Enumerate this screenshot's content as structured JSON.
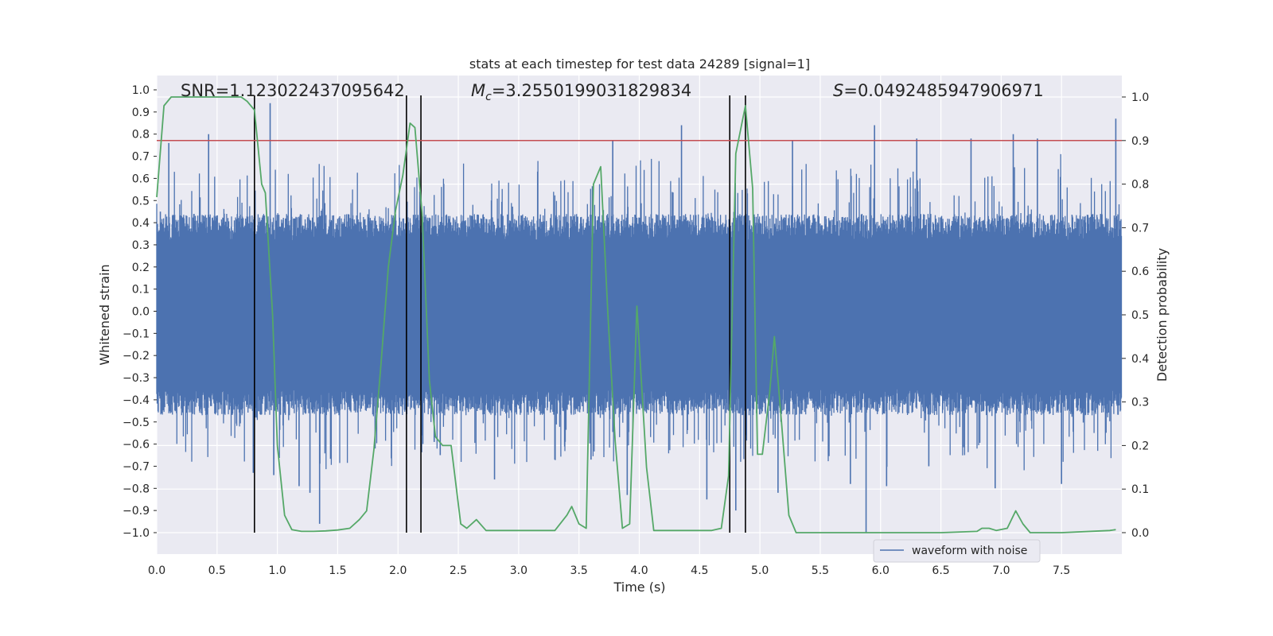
{
  "chart_data": {
    "type": "line",
    "title": "stats at each timestep for test data 24289 [signal=1]",
    "xlabel": "Time (s)",
    "ylabel_left": "Whitened strain",
    "ylabel_right": "Detection probability",
    "xlim": [
      0.0,
      8.0
    ],
    "ylim_left": [
      -1.1,
      1.05
    ],
    "ylim_right": [
      -0.05,
      1.03
    ],
    "x_ticks": [
      "0.0",
      "0.5",
      "1.0",
      "1.5",
      "2.0",
      "2.5",
      "3.0",
      "3.5",
      "4.0",
      "4.5",
      "5.0",
      "5.5",
      "6.0",
      "6.5",
      "7.0",
      "7.5"
    ],
    "y_left_ticks": [
      "1.0",
      "0.9",
      "0.8",
      "0.7",
      "0.6",
      "0.5",
      "0.4",
      "0.3",
      "0.2",
      "0.1",
      "0.0",
      "-0.1",
      "-0.2",
      "-0.3",
      "-0.4",
      "-0.5",
      "-0.6",
      "-0.7",
      "-0.8",
      "-0.9",
      "-1.0"
    ],
    "y_right_ticks": [
      "1.0",
      "0.9",
      "0.8",
      "0.7",
      "0.6",
      "0.5",
      "0.4",
      "0.3",
      "0.2",
      "0.1",
      "0.0"
    ],
    "grid": true,
    "legend_position": "lower-right",
    "legend_label": "waveform with noise",
    "annotations": [
      {
        "id": "snr",
        "text": "SNR=1.123022437095642"
      },
      {
        "id": "mc",
        "prefix": "M",
        "subscript": "c",
        "text": "=3.2550199031829834"
      },
      {
        "id": "s",
        "prefix": "S",
        "text": "=0.0492485947906971"
      }
    ],
    "threshold": {
      "value": 0.9,
      "axis": "right",
      "color": "#c44e52"
    },
    "vertical_lines_x": [
      0.81,
      2.07,
      2.19,
      4.75,
      4.88
    ],
    "waveform": {
      "color": "#4c72b0",
      "description_free": true,
      "envelope_upper": 0.37,
      "envelope_lower": -0.4,
      "spike_peaks": [
        [
          0.03,
          0.45
        ],
        [
          0.1,
          0.76
        ],
        [
          0.43,
          0.8
        ],
        [
          0.94,
          0.94
        ],
        [
          0.97,
          -0.74
        ],
        [
          0.8,
          -0.73
        ],
        [
          1.18,
          -0.79
        ],
        [
          1.27,
          -0.82
        ],
        [
          1.35,
          -0.96
        ],
        [
          1.81,
          -0.62
        ],
        [
          2.3,
          -0.59
        ],
        [
          2.35,
          -0.65
        ],
        [
          2.8,
          -0.76
        ],
        [
          3.3,
          -0.67
        ],
        [
          3.6,
          -0.67
        ],
        [
          3.78,
          0.77
        ],
        [
          3.9,
          -0.83
        ],
        [
          4.35,
          0.84
        ],
        [
          4.56,
          -0.85
        ],
        [
          4.8,
          -0.9
        ],
        [
          5.15,
          -0.82
        ],
        [
          5.27,
          0.77
        ],
        [
          5.88,
          -1.0
        ],
        [
          5.95,
          0.84
        ],
        [
          6.05,
          -0.79
        ],
        [
          6.3,
          0.78
        ],
        [
          6.75,
          0.78
        ],
        [
          6.95,
          -0.8
        ],
        [
          7.1,
          0.8
        ],
        [
          7.3,
          0.78
        ],
        [
          7.5,
          -0.78
        ],
        [
          7.95,
          0.87
        ],
        [
          5.75,
          -0.78
        ],
        [
          6.4,
          -0.7
        ]
      ]
    },
    "detection_probability": {
      "color": "#55a868",
      "x": [
        0.0,
        0.06,
        0.12,
        0.2,
        0.3,
        0.4,
        0.5,
        0.6,
        0.7,
        0.75,
        0.81,
        0.87,
        0.9,
        0.96,
        1.0,
        1.06,
        1.12,
        1.2,
        1.3,
        1.4,
        1.5,
        1.6,
        1.68,
        1.74,
        1.8,
        1.86,
        1.92,
        1.98,
        2.04,
        2.1,
        2.14,
        2.2,
        2.26,
        2.31,
        2.37,
        2.44,
        2.52,
        2.57,
        2.65,
        2.73,
        2.8,
        2.9,
        3.0,
        3.1,
        3.2,
        3.3,
        3.4,
        3.44,
        3.5,
        3.56,
        3.62,
        3.68,
        3.74,
        3.8,
        3.86,
        3.92,
        3.98,
        4.06,
        4.12,
        4.18,
        4.24,
        4.3,
        4.4,
        4.5,
        4.6,
        4.68,
        4.74,
        4.8,
        4.88,
        4.94,
        4.98,
        5.02,
        5.08,
        5.12,
        5.18,
        5.24,
        5.3,
        5.5,
        6.0,
        6.5,
        6.8,
        6.84,
        6.9,
        6.96,
        7.05,
        7.12,
        7.18,
        7.24,
        7.3,
        7.5,
        7.9,
        7.95
      ],
      "y": [
        0.77,
        0.98,
        1.0,
        1.0,
        1.0,
        1.0,
        1.0,
        1.0,
        1.0,
        0.99,
        0.97,
        0.8,
        0.78,
        0.5,
        0.2,
        0.04,
        0.007,
        0.003,
        0.003,
        0.004,
        0.006,
        0.01,
        0.03,
        0.05,
        0.19,
        0.39,
        0.61,
        0.74,
        0.82,
        0.94,
        0.93,
        0.73,
        0.35,
        0.22,
        0.2,
        0.2,
        0.02,
        0.01,
        0.03,
        0.005,
        0.005,
        0.005,
        0.005,
        0.005,
        0.005,
        0.005,
        0.04,
        0.06,
        0.02,
        0.01,
        0.8,
        0.84,
        0.5,
        0.21,
        0.01,
        0.02,
        0.52,
        0.15,
        0.005,
        0.005,
        0.005,
        0.005,
        0.005,
        0.005,
        0.005,
        0.01,
        0.13,
        0.87,
        0.98,
        0.79,
        0.18,
        0.18,
        0.32,
        0.45,
        0.25,
        0.04,
        0.0,
        0.0,
        0.0,
        0.0,
        0.003,
        0.01,
        0.01,
        0.005,
        0.01,
        0.05,
        0.02,
        0.0,
        0.0,
        0.0,
        0.005,
        0.007
      ]
    }
  }
}
